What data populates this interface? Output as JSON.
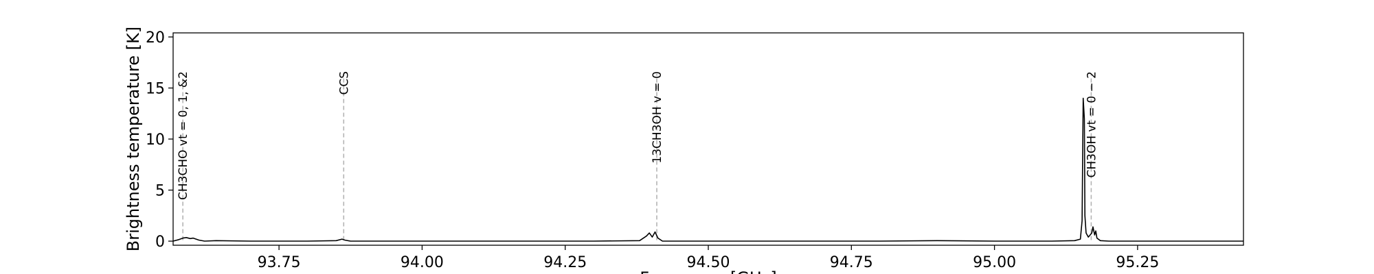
{
  "chart_data": {
    "type": "line",
    "xlabel": "Frequency [GHz]",
    "ylabel": "Brightness temperature [K]",
    "xlim": [
      93.565,
      95.435
    ],
    "ylim": [
      -0.4,
      20.4
    ],
    "xticks": [
      "93.75",
      "94.00",
      "94.25",
      "94.50",
      "94.75",
      "95.00",
      "95.25"
    ],
    "yticks": [
      "0",
      "5",
      "10",
      "15",
      "20"
    ],
    "grid": false,
    "colors": {
      "spectrum": "#000000",
      "marker": "#b3b3b3",
      "frame": "#000000"
    },
    "line_markers": [
      {
        "x": 93.582,
        "label": "CH3CHO vt = 0, 1, &2"
      },
      {
        "x": 93.863,
        "label": "CCS"
      },
      {
        "x": 94.41,
        "label": "13CH3OH v = 0"
      },
      {
        "x": 95.169,
        "label": "CH3OH vt = 0 − 2"
      }
    ],
    "series": [
      {
        "x": [
          93.565,
          93.575,
          93.582,
          93.588,
          93.595,
          93.6,
          93.61,
          93.62,
          93.64,
          93.7,
          93.75,
          93.8,
          93.85,
          93.86,
          93.865,
          93.875,
          93.9,
          94.0,
          94.1,
          94.2,
          94.3,
          94.38,
          94.392,
          94.397,
          94.402,
          94.407,
          94.412,
          94.42,
          94.5,
          94.6,
          94.7,
          94.8,
          94.9,
          95.0,
          95.1,
          95.14,
          95.15,
          95.153,
          95.155,
          95.157,
          95.158,
          95.16,
          95.164,
          95.17,
          95.172,
          95.175,
          95.177,
          95.179,
          95.185,
          95.2,
          95.3,
          95.435
        ],
        "y": [
          0.0,
          0.15,
          0.3,
          0.35,
          0.25,
          0.3,
          0.1,
          0.0,
          0.05,
          0.0,
          0.0,
          0.0,
          0.05,
          0.2,
          0.1,
          0.0,
          0.0,
          0.0,
          0.0,
          0.0,
          0.0,
          0.05,
          0.5,
          0.8,
          0.4,
          0.9,
          0.3,
          0.0,
          0.0,
          0.0,
          0.0,
          0.0,
          0.05,
          0.0,
          0.0,
          0.05,
          0.2,
          2.0,
          14.0,
          12.0,
          2.5,
          0.8,
          0.4,
          0.8,
          1.4,
          0.6,
          1.0,
          0.3,
          0.05,
          0.0,
          0.0,
          0.0
        ]
      }
    ]
  }
}
